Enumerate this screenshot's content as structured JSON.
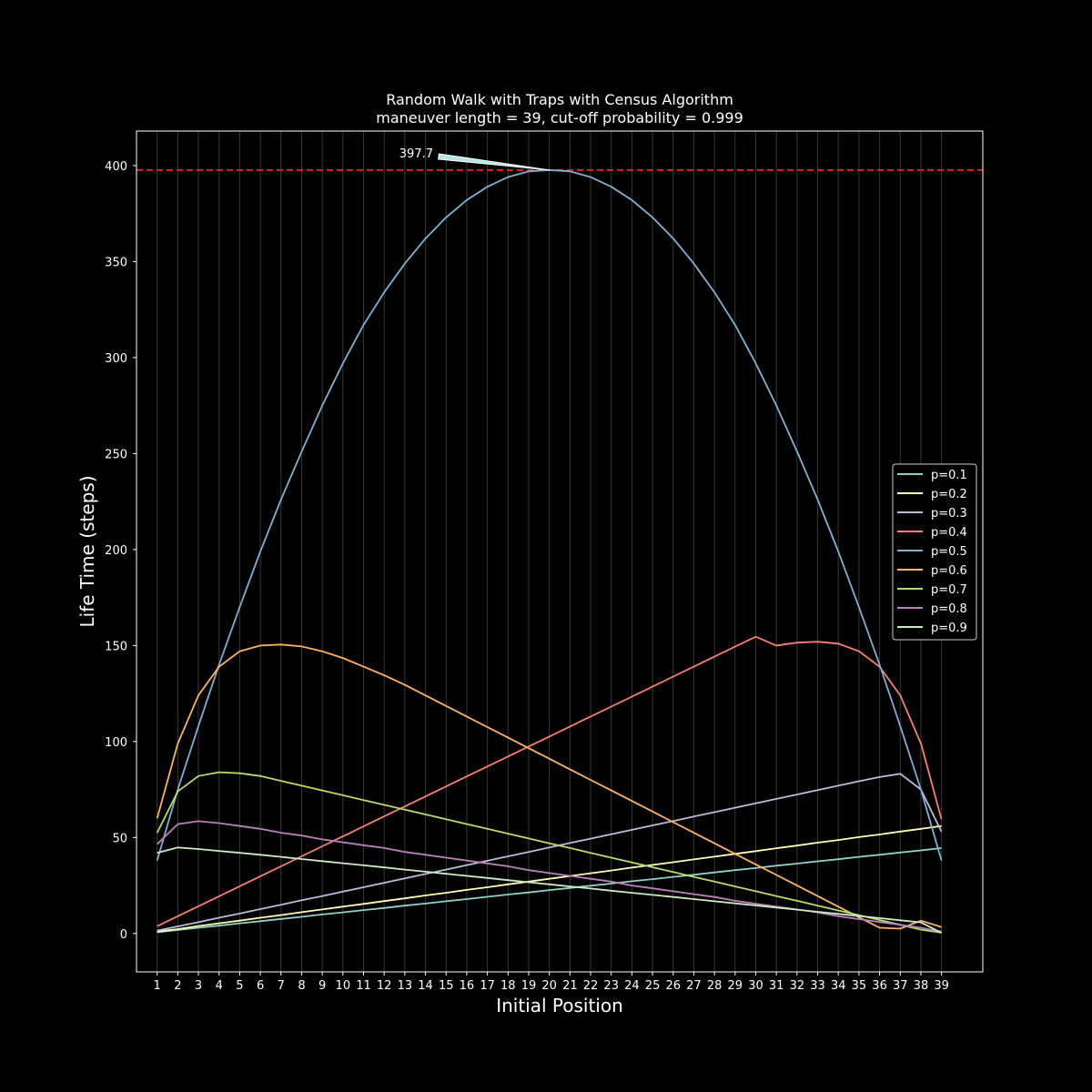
{
  "chart_data": {
    "type": "line",
    "title": "Random Walk with Traps with Census Algorithm",
    "subtitle": "maneuver length = 39, cut-off probability = 0.999",
    "xlabel": "Initial Position",
    "ylabel": "Life Time (steps)",
    "xlim": [
      0,
      41
    ],
    "ylim": [
      -20,
      418
    ],
    "yticks": [
      0,
      50,
      100,
      150,
      200,
      250,
      300,
      350,
      400
    ],
    "x": [
      1,
      2,
      3,
      4,
      5,
      6,
      7,
      8,
      9,
      10,
      11,
      12,
      13,
      14,
      15,
      16,
      17,
      18,
      19,
      20,
      21,
      22,
      23,
      24,
      25,
      26,
      27,
      28,
      29,
      30,
      31,
      32,
      33,
      34,
      35,
      36,
      37,
      38,
      39
    ],
    "xgrid": true,
    "ygrid": false,
    "legend_position": "center-right",
    "hline": {
      "value": 397.7,
      "color": "#d62728",
      "style": "dashed"
    },
    "annotation": {
      "text": "397.7",
      "x": 20,
      "y": 397.7
    },
    "series": [
      {
        "name": "p=0.1",
        "color": "#8dd3c7",
        "values": [
          0.6,
          1.8,
          3.0,
          4.1,
          5.3,
          6.4,
          7.6,
          8.7,
          9.9,
          11.0,
          12.2,
          13.3,
          14.5,
          15.6,
          16.8,
          17.9,
          19.1,
          20.3,
          21.4,
          22.6,
          23.7,
          24.9,
          26.0,
          27.2,
          28.3,
          29.5,
          30.6,
          31.8,
          33.0,
          34.1,
          35.3,
          36.4,
          37.6,
          38.7,
          39.9,
          41.0,
          42.2,
          43.3,
          44.5
        ]
      },
      {
        "name": "p=0.2",
        "color": "#ffffb3",
        "values": [
          1.0,
          2.3,
          3.9,
          5.3,
          6.7,
          8.2,
          9.6,
          11.1,
          12.5,
          14.0,
          15.4,
          16.9,
          18.3,
          19.8,
          21.2,
          22.7,
          24.1,
          25.6,
          27.0,
          28.5,
          29.9,
          31.4,
          32.8,
          34.3,
          35.7,
          37.1,
          38.6,
          40.0,
          41.5,
          42.9,
          44.4,
          45.8,
          47.3,
          48.7,
          50.2,
          51.6,
          53.1,
          54.5,
          56.0
        ]
      },
      {
        "name": "p=0.3",
        "color": "#bebada",
        "values": [
          1.5,
          3.7,
          5.9,
          8.2,
          10.4,
          12.7,
          15.0,
          17.3,
          19.5,
          21.8,
          24.1,
          26.4,
          28.7,
          31.0,
          33.3,
          35.6,
          37.9,
          40.2,
          42.5,
          44.8,
          47.1,
          49.4,
          51.7,
          54.0,
          56.3,
          58.6,
          60.9,
          63.2,
          65.5,
          67.8,
          70.1,
          72.4,
          74.7,
          77.0,
          79.3,
          81.5,
          83.2,
          75.0,
          53.0
        ]
      },
      {
        "name": "p=0.4",
        "color": "#fb8072",
        "values": [
          3.8,
          9.0,
          14.2,
          19.4,
          24.6,
          29.8,
          35.0,
          40.2,
          45.4,
          50.6,
          55.8,
          61.0,
          66.2,
          71.4,
          76.6,
          81.8,
          87.0,
          92.2,
          97.4,
          102.6,
          107.8,
          113.0,
          118.2,
          123.4,
          128.6,
          133.8,
          139.0,
          144.2,
          149.4,
          154.6,
          150.0,
          151.5,
          152.0,
          151.0,
          147.0,
          139.0,
          124.0,
          99.0,
          59.5
        ]
      },
      {
        "name": "p=0.5",
        "color": "#80b1d3",
        "values": [
          38.0,
          75.0,
          108.0,
          140.0,
          170.0,
          199.0,
          226.0,
          251.0,
          275.0,
          297.0,
          317.0,
          334.0,
          349.0,
          362.0,
          373.0,
          382.0,
          389.0,
          394.0,
          397.0,
          397.7,
          397.0,
          394.0,
          389.0,
          382.0,
          373.0,
          362.0,
          349.0,
          334.0,
          317.0,
          297.0,
          275.0,
          251.0,
          226.0,
          199.0,
          170.0,
          140.0,
          108.0,
          75.0,
          38.0
        ]
      },
      {
        "name": "p=0.6",
        "color": "#fdb462",
        "values": [
          60.0,
          99.0,
          124.0,
          139.0,
          147.0,
          150.0,
          150.5,
          149.5,
          147.0,
          143.5,
          139.0,
          134.5,
          129.5,
          124.0,
          118.5,
          113.0,
          107.5,
          102.0,
          96.5,
          91.0,
          85.5,
          80.0,
          74.5,
          69.0,
          63.5,
          58.0,
          52.5,
          47.0,
          41.5,
          36.0,
          30.5,
          25.0,
          19.5,
          14.0,
          8.5,
          3.0,
          2.5,
          6.7,
          3.3
        ]
      },
      {
        "name": "p=0.7",
        "color": "#b3de69",
        "values": [
          52.5,
          74.0,
          82.0,
          84.0,
          83.5,
          82.0,
          79.5,
          77.0,
          74.5,
          72.0,
          69.5,
          67.0,
          64.5,
          62.0,
          59.5,
          57.0,
          54.5,
          52.0,
          49.5,
          47.0,
          44.5,
          42.0,
          39.5,
          37.0,
          34.5,
          32.0,
          29.5,
          27.0,
          24.5,
          22.0,
          19.5,
          17.0,
          14.5,
          12.0,
          9.5,
          7.0,
          4.5,
          2.0,
          0.5
        ]
      },
      {
        "name": "p=0.8",
        "color": "#bc80bd",
        "values": [
          46.5,
          57.0,
          58.5,
          57.5,
          56.0,
          54.5,
          52.5,
          51.0,
          49.0,
          47.5,
          46.0,
          44.5,
          42.5,
          41.0,
          39.5,
          38.0,
          36.5,
          35.0,
          33.0,
          31.5,
          30.0,
          28.5,
          27.0,
          25.0,
          23.5,
          22.0,
          20.5,
          19.0,
          17.0,
          15.5,
          14.0,
          12.5,
          11.0,
          9.0,
          7.5,
          6.0,
          4.5,
          3.0,
          1.0
        ]
      },
      {
        "name": "p=0.9",
        "color": "#ccebc5",
        "values": [
          42.0,
          44.8,
          44.0,
          43.0,
          42.0,
          41.0,
          39.9,
          38.8,
          37.7,
          36.6,
          35.5,
          34.4,
          33.3,
          32.2,
          31.1,
          30.0,
          28.9,
          27.8,
          26.7,
          25.6,
          24.5,
          23.4,
          22.3,
          21.2,
          20.1,
          19.0,
          17.9,
          16.8,
          15.7,
          14.6,
          13.5,
          12.4,
          11.3,
          10.2,
          9.1,
          8.0,
          6.9,
          5.8,
          0.3
        ]
      }
    ]
  }
}
